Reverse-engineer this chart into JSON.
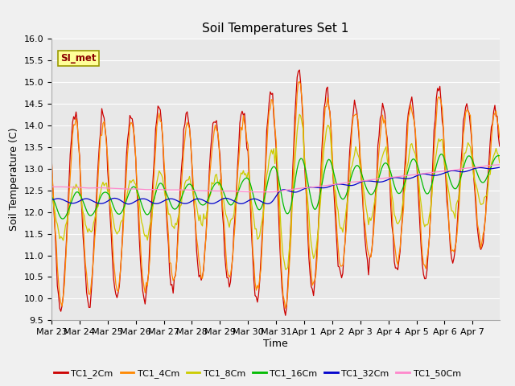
{
  "title": "Soil Temperatures Set 1",
  "xlabel": "Time",
  "ylabel": "Soil Temperature (C)",
  "ylim": [
    9.5,
    16.0
  ],
  "yticks": [
    9.5,
    10.0,
    10.5,
    11.0,
    11.5,
    12.0,
    12.5,
    13.0,
    13.5,
    14.0,
    14.5,
    15.0,
    15.5,
    16.0
  ],
  "colors": {
    "TC1_2Cm": "#cc0000",
    "TC1_4Cm": "#ff8800",
    "TC1_8Cm": "#cccc00",
    "TC1_16Cm": "#00bb00",
    "TC1_32Cm": "#0000cc",
    "TC1_50Cm": "#ff88cc"
  },
  "legend_label": "SI_met",
  "bg_color": "#e8e8e8",
  "grid_color": "#ffffff",
  "tick_labels": [
    "Mar 23",
    "Mar 24",
    "Mar 25",
    "Mar 26",
    "Mar 27",
    "Mar 28",
    "Mar 29",
    "Mar 30",
    "Mar 31",
    "Apr 1",
    "Apr 2",
    "Apr 3",
    "Apr 4",
    "Apr 5",
    "Apr 6",
    "Apr 7"
  ],
  "n_days": 16
}
